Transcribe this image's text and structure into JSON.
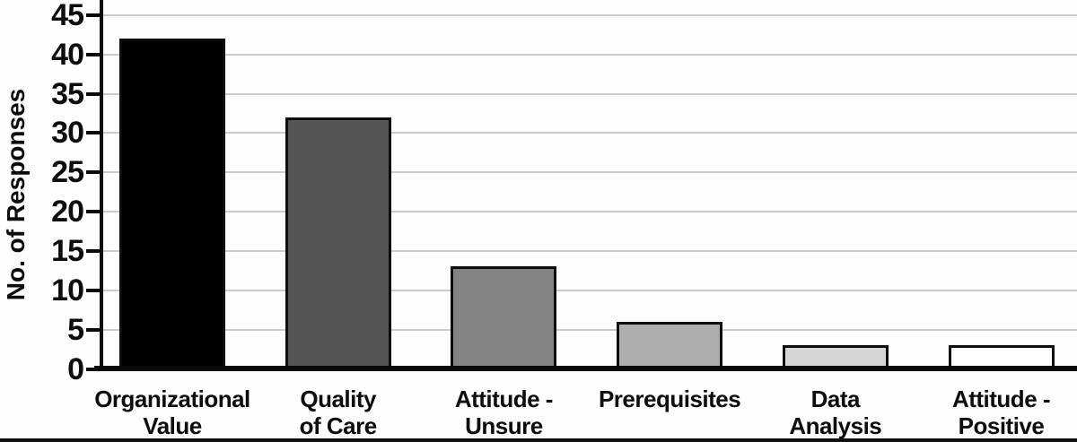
{
  "chart_data": {
    "type": "bar",
    "title": "",
    "xlabel": "",
    "ylabel": "No. of Responses",
    "categories": [
      "Organizational Value",
      "Quality of Care",
      "Attitude - Unsure",
      "Prerequisites",
      "Data Analysis",
      "Attitude - Positive"
    ],
    "category_lines": [
      [
        "Organizational",
        "Value"
      ],
      [
        "Quality",
        "of Care"
      ],
      [
        "Attitude -",
        "Unsure"
      ],
      [
        "Prerequisites"
      ],
      [
        "Data",
        "Analysis"
      ],
      [
        "Attitude -",
        "Positive"
      ]
    ],
    "values": [
      42,
      32,
      13,
      6,
      3,
      3
    ],
    "bar_colors": [
      "#000000",
      "#555553",
      "#838383",
      "#aeaeae",
      "#d6d6d6",
      "#ffffff"
    ],
    "bar_border_color": "#0d0d0d",
    "y_ticks": [
      0,
      5,
      10,
      15,
      20,
      25,
      30,
      35,
      40,
      45
    ],
    "ylim": [
      0,
      47
    ],
    "grid": true,
    "gridline_color": "#cbcbcb",
    "legend": "none",
    "axis_color": "#0a0a0a"
  }
}
